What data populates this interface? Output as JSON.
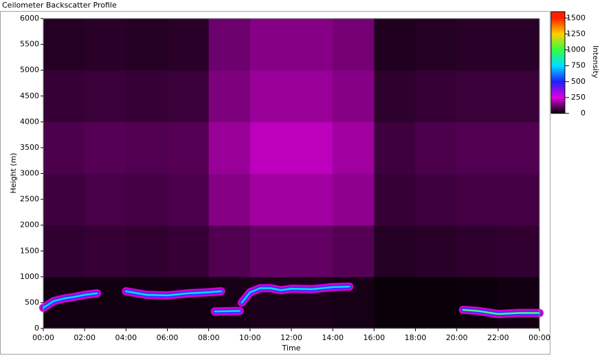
{
  "chart_data": {
    "type": "heatmap",
    "title": "Ceilometer Backscatter Profile",
    "xlabel": "Time",
    "ylabel": "Height (m)",
    "colorbar_label": "Intensity",
    "xlim": [
      0,
      24
    ],
    "ylim": [
      0,
      6000
    ],
    "zlim": [
      0,
      1600
    ],
    "xticks": [
      {
        "value": 0,
        "label": "00:00"
      },
      {
        "value": 2,
        "label": "02:00"
      },
      {
        "value": 4,
        "label": "04:00"
      },
      {
        "value": 6,
        "label": "06:00"
      },
      {
        "value": 8,
        "label": "08:00"
      },
      {
        "value": 10,
        "label": "10:00"
      },
      {
        "value": 12,
        "label": "12:00"
      },
      {
        "value": 14,
        "label": "14:00"
      },
      {
        "value": 16,
        "label": "16:00"
      },
      {
        "value": 18,
        "label": "18:00"
      },
      {
        "value": 20,
        "label": "20:00"
      },
      {
        "value": 22,
        "label": "22:00"
      },
      {
        "value": 24,
        "label": "00:00"
      }
    ],
    "yticks": [
      0,
      500,
      1000,
      1500,
      2000,
      2500,
      3000,
      3500,
      4000,
      4500,
      5000,
      5500,
      6000
    ],
    "zticks": [
      0,
      250,
      500,
      750,
      1000,
      1250,
      1500
    ],
    "colormap": [
      [
        0,
        "#000000"
      ],
      [
        250,
        "#e000e0"
      ],
      [
        500,
        "#2020ff"
      ],
      [
        750,
        "#00e0ff"
      ],
      [
        1000,
        "#30ff40"
      ],
      [
        1250,
        "#ffd000"
      ],
      [
        1500,
        "#ff2000"
      ]
    ],
    "grid_values": [
      [
        20,
        20,
        20,
        20,
        25,
        30,
        30,
        25,
        10,
        10,
        15,
        20
      ],
      [
        55,
        60,
        55,
        60,
        90,
        110,
        110,
        95,
        40,
        45,
        50,
        55
      ],
      [
        70,
        80,
        75,
        85,
        150,
        180,
        180,
        160,
        60,
        70,
        75,
        75
      ],
      [
        85,
        95,
        90,
        95,
        170,
        210,
        210,
        180,
        70,
        85,
        90,
        90
      ],
      [
        60,
        65,
        60,
        65,
        140,
        170,
        170,
        150,
        50,
        60,
        65,
        65
      ],
      [
        40,
        45,
        40,
        45,
        120,
        150,
        150,
        130,
        35,
        40,
        45,
        45
      ]
    ],
    "layers": [
      {
        "x": [
          0,
          0.5,
          1,
          1.5,
          2,
          2.6
        ],
        "heights": [
          400,
          530,
          580,
          610,
          650,
          680
        ],
        "color": "#00e0ff"
      },
      {
        "x": [
          4,
          5,
          6,
          7,
          8,
          8.6
        ],
        "heights": [
          720,
          650,
          640,
          680,
          700,
          720
        ],
        "color": "#00e0ff"
      },
      {
        "x": [
          8.3,
          9.5
        ],
        "heights": [
          330,
          340
        ],
        "color": "#00e0ff"
      },
      {
        "x": [
          9.6,
          10,
          10.5,
          11,
          11.5,
          12,
          13,
          14,
          14.8
        ],
        "heights": [
          500,
          700,
          780,
          780,
          740,
          770,
          760,
          800,
          810
        ],
        "color": "#00e0ff"
      },
      {
        "x": [
          20.3,
          21,
          22,
          23,
          24
        ],
        "heights": [
          360,
          340,
          280,
          300,
          300
        ],
        "color": "#40ff80"
      }
    ]
  }
}
